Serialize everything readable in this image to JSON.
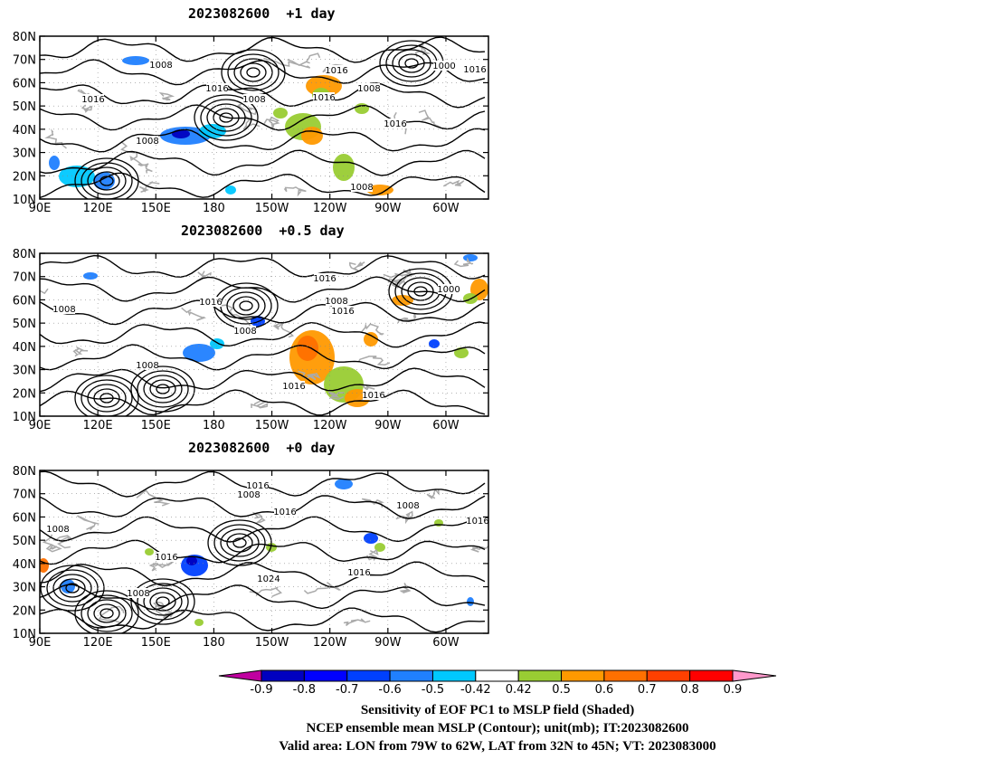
{
  "panels": [
    {
      "id": "p1",
      "title": "2023082600  +1 day",
      "contour_labels": [
        "1008",
        "1016",
        "1016",
        "1008",
        "1016",
        "1008",
        "1000",
        "1016",
        "1016",
        "1008",
        "1016",
        "1008"
      ]
    },
    {
      "id": "p2",
      "title": "2023082600  +0.5 day",
      "contour_labels": [
        "1016",
        "1016",
        "1008",
        "1000",
        "1008",
        "1008",
        "1016",
        "1008",
        "1016",
        "1016"
      ]
    },
    {
      "id": "p3",
      "title": "2023082600  +0 day",
      "contour_labels": [
        "1016",
        "1008",
        "1008",
        "1016",
        "1016",
        "1024",
        "1016",
        "1008",
        "1016",
        "1008"
      ]
    }
  ],
  "axes": {
    "lat_ticks": [
      "80N",
      "70N",
      "60N",
      "50N",
      "40N",
      "30N",
      "20N",
      "10N"
    ],
    "lon_ticks": [
      "90E",
      "120E",
      "150E",
      "180",
      "150W",
      "120W",
      "90W",
      "60W"
    ],
    "lon_range": [
      90,
      322
    ],
    "lat_range": [
      10,
      80
    ]
  },
  "colorbar": {
    "labels": [
      "-0.9",
      "-0.8",
      "-0.7",
      "-0.6",
      "-0.5",
      "-0.42",
      "0.42",
      "0.5",
      "0.6",
      "0.7",
      "0.8",
      "0.9"
    ],
    "colors": [
      "#c000a0",
      "#0000c0",
      "#0000ff",
      "#0040ff",
      "#2080ff",
      "#00c8ff",
      "#ffffff",
      "#99cc33",
      "#ff9900",
      "#ff7000",
      "#ff4000",
      "#ff0000",
      "#ff99cc"
    ]
  },
  "captions": {
    "line1": "Sensitivity of EOF PC1 to MSLP field (Shaded)",
    "line2": "NCEP ensemble mean MSLP (Contour); unit(mb); IT:2023082600",
    "line3": "Valid area: LON from 79W to 62W, LAT from 32N to 45N; VT: 2023083000"
  }
}
